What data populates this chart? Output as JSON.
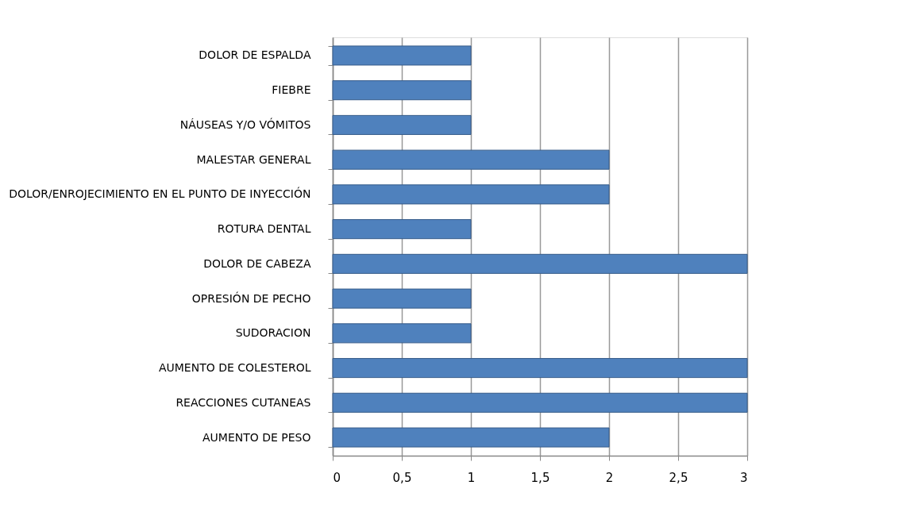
{
  "chart_data": {
    "type": "bar",
    "orientation": "horizontal",
    "categories": [
      "DOLOR DE ESPALDA",
      "FIEBRE",
      "NÁUSEAS Y/O VÓMITOS",
      "MALESTAR GENERAL",
      "DOLOR/ENROJECIMIENTO EN EL PUNTO DE INYECCIÓN",
      "ROTURA DENTAL",
      "DOLOR DE CABEZA",
      "OPRESIÓN DE PECHO",
      "SUDORACION",
      "AUMENTO DE COLESTEROL",
      "REACCIONES CUTANEAS",
      "AUMENTO DE PESO"
    ],
    "values": [
      1,
      1,
      1,
      2,
      2,
      1,
      3,
      1,
      1,
      3,
      3,
      2
    ],
    "color": "#4f81bd",
    "xlim": [
      0,
      3
    ],
    "xticks": [
      0,
      {
        "value": 0.5,
        "label": "0,5"
      },
      1,
      {
        "value": 1.5,
        "label": "1,5"
      },
      2,
      {
        "value": 2.5,
        "label": "2,5"
      },
      3
    ],
    "grid": "x"
  }
}
